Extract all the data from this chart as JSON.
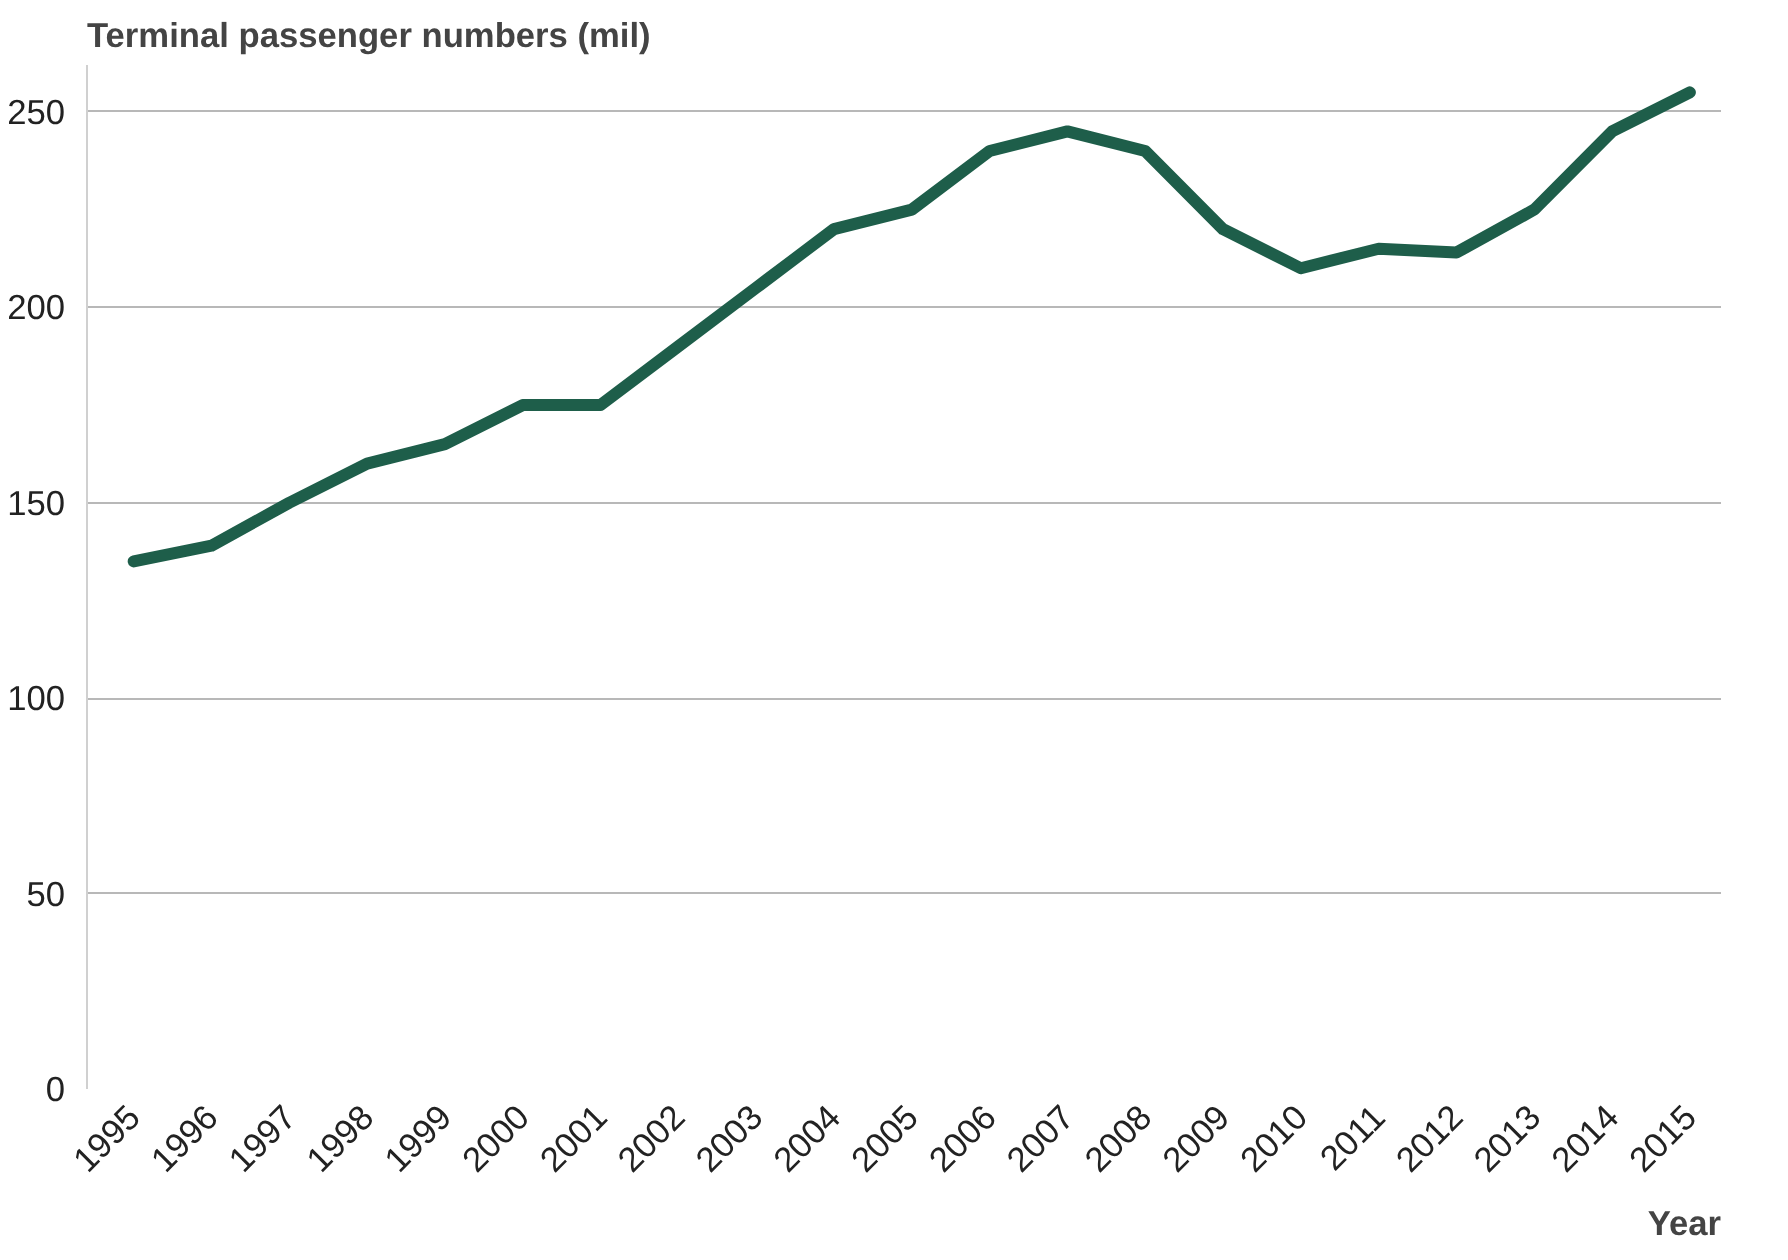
{
  "chart_data": {
    "type": "line",
    "ylabel": "Terminal passenger numbers (mil)",
    "xlabel": "Year",
    "categories": [
      "1995",
      "1996",
      "1997",
      "1998",
      "1999",
      "2000",
      "2001",
      "2002",
      "2003",
      "2004",
      "2005",
      "2006",
      "2007",
      "2008",
      "2009",
      "2010",
      "2011",
      "2012",
      "2013",
      "2014",
      "2015"
    ],
    "series": [
      {
        "color": "#1e5e4a",
        "values": [
          135,
          139,
          150,
          160,
          165,
          175,
          175,
          190,
          205,
          220,
          225,
          240,
          245,
          240,
          220,
          210,
          215,
          214,
          225,
          245,
          255
        ]
      }
    ],
    "ylim": [
      0,
      262
    ],
    "yticks": [
      0,
      50,
      100,
      150,
      200,
      250
    ],
    "grid": "y",
    "marker": "none",
    "line_style": "solid"
  }
}
